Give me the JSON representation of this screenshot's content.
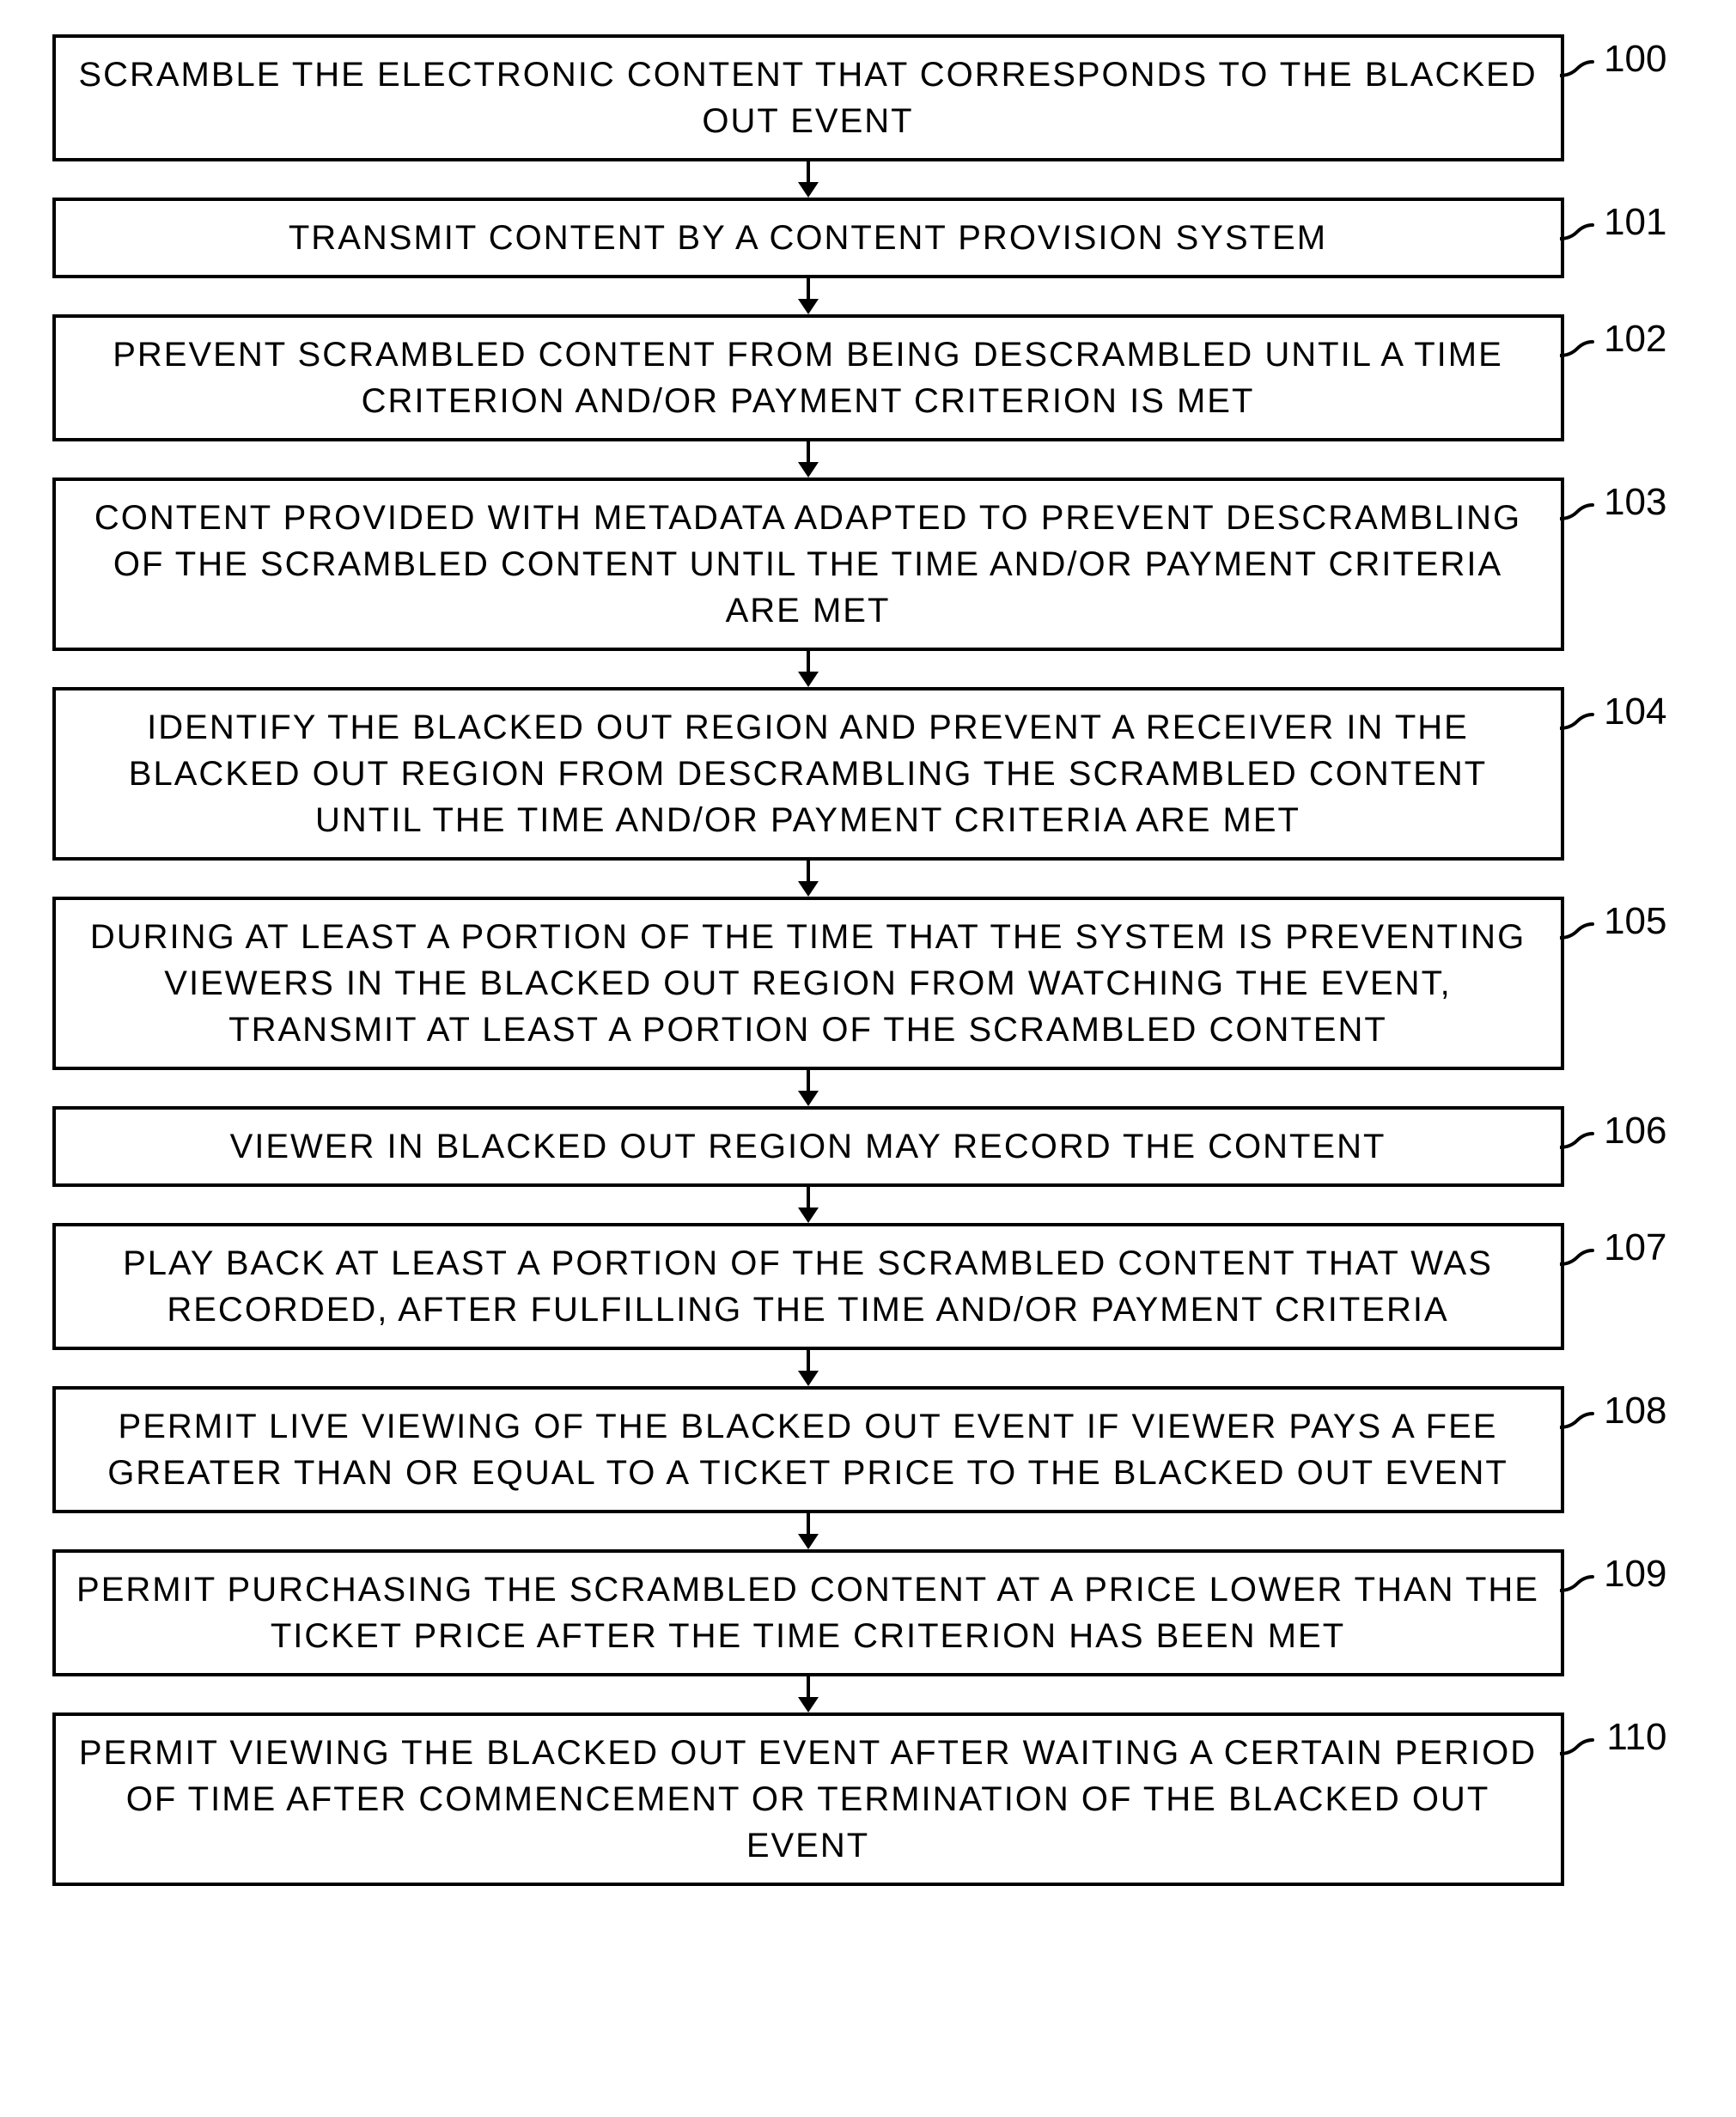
{
  "flowchart": {
    "type": "flowchart",
    "background_color": "#ffffff",
    "box_border_color": "#000000",
    "box_border_width": 4,
    "text_color": "#000000",
    "font_size": 40,
    "label_font_size": 44,
    "letter_spacing": 2,
    "arrow_color": "#000000",
    "steps": [
      {
        "label": "100",
        "text": "SCRAMBLE THE ELECTRONIC CONTENT THAT CORRESPONDS TO THE BLACKED OUT EVENT"
      },
      {
        "label": "101",
        "text": "TRANSMIT CONTENT BY A CONTENT PROVISION SYSTEM"
      },
      {
        "label": "102",
        "text": "PREVENT SCRAMBLED CONTENT FROM BEING DESCRAMBLED UNTIL A TIME CRITERION AND/OR PAYMENT CRITERION IS MET"
      },
      {
        "label": "103",
        "text": "CONTENT PROVIDED WITH METADATA ADAPTED TO PREVENT DESCRAMBLING OF THE SCRAMBLED CONTENT UNTIL THE TIME AND/OR PAYMENT CRITERIA ARE MET"
      },
      {
        "label": "104",
        "text": "IDENTIFY THE BLACKED OUT REGION AND PREVENT A RECEIVER IN THE BLACKED OUT REGION FROM DESCRAMBLING THE SCRAMBLED CONTENT UNTIL THE TIME AND/OR PAYMENT CRITERIA ARE MET"
      },
      {
        "label": "105",
        "text": "DURING AT LEAST A PORTION OF THE TIME THAT THE SYSTEM IS PREVENTING VIEWERS IN THE BLACKED OUT REGION FROM WATCHING THE EVENT, TRANSMIT AT LEAST A PORTION OF THE SCRAMBLED CONTENT"
      },
      {
        "label": "106",
        "text": "VIEWER IN BLACKED OUT REGION MAY RECORD THE CONTENT"
      },
      {
        "label": "107",
        "text": "PLAY BACK AT LEAST A PORTION OF THE SCRAMBLED CONTENT THAT WAS RECORDED, AFTER FULFILLING THE TIME AND/OR PAYMENT CRITERIA"
      },
      {
        "label": "108",
        "text": "PERMIT LIVE VIEWING OF THE BLACKED OUT EVENT IF VIEWER PAYS A FEE GREATER THAN OR EQUAL TO A TICKET PRICE TO THE BLACKED OUT EVENT"
      },
      {
        "label": "109",
        "text": "PERMIT PURCHASING THE SCRAMBLED CONTENT AT A PRICE LOWER THAN THE TICKET PRICE AFTER THE TIME CRITERION HAS BEEN MET"
      },
      {
        "label": "110",
        "text": "PERMIT VIEWING THE BLACKED OUT EVENT AFTER WAITING A CERTAIN PERIOD OF TIME AFTER COMMENCEMENT OR TERMINATION OF THE BLACKED OUT EVENT"
      }
    ]
  }
}
